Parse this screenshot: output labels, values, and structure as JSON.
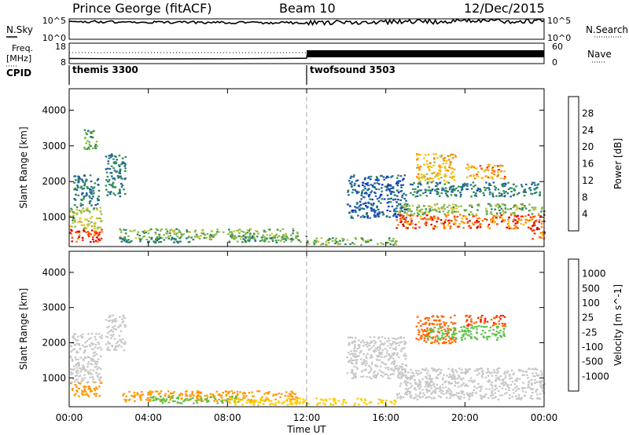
{
  "header": {
    "station": "Prince George (fitACF)",
    "beam": "Beam 10",
    "date": "12/Dec/2015"
  },
  "top_panels": {
    "nsky_label": "N.Sky",
    "nsky_ticks_left": [
      "10^5",
      "10^0"
    ],
    "nsky_ticks_right": [
      "10^5",
      "10^0"
    ],
    "nsearch_label": "N.Search",
    "freq_label": "Freq.",
    "freq_unit": "[MHz]",
    "freq_ticks_left": [
      "18",
      "8"
    ],
    "nave_ticks_right": [
      "60",
      "0"
    ],
    "nave_label": "Nave",
    "cpid_label": "CPID",
    "cpid_segments": [
      {
        "label": "themis 3300",
        "start_h": 0,
        "end_h": 12
      },
      {
        "label": "twofsound 3503",
        "start_h": 12,
        "end_h": 24
      }
    ]
  },
  "time_axis": {
    "title": "Time UT",
    "ticks": [
      "00:00",
      "04:00",
      "08:00",
      "12:00",
      "16:00",
      "20:00",
      "00:00"
    ]
  },
  "power_colorbar": {
    "title": "Power [dB]",
    "ticks": [
      "28",
      "24",
      "20",
      "16",
      "12",
      "8",
      "4"
    ],
    "colors": [
      "#d90000",
      "#ff3300",
      "#ff8000",
      "#ffbf00",
      "#d6c23a",
      "#88b84a",
      "#2e8b57",
      "#1f5f9f",
      "#1033c8",
      "#0000ff"
    ]
  },
  "velocity_colorbar": {
    "title": "Velocity [m s^-1]",
    "ticks": [
      "1000",
      "500",
      "100",
      "25",
      "-25",
      "-100",
      "-500",
      "-1000"
    ],
    "colors": [
      "#1f3fb0",
      "#2f6ab8",
      "#3a8f6a",
      "#5fc24a",
      "#c8c8c8",
      "#ffcc00",
      "#ff9900",
      "#ff6600",
      "#ff2200",
      "#d90000"
    ]
  },
  "chart_data": [
    {
      "type": "heatmap",
      "title": "Power",
      "xlabel": "",
      "ylabel": "Slant Range [km]",
      "xlim": [
        0,
        24
      ],
      "ylim": [
        180,
        4600
      ],
      "yticks": [
        1000,
        2000,
        3000,
        4000
      ],
      "zlabel": "Power [dB]",
      "zlim": [
        0,
        32
      ],
      "regions": [
        {
          "t0": 0.0,
          "t1": 1.6,
          "r0": 300,
          "r1": 700,
          "value": 28
        },
        {
          "t0": 0.0,
          "t1": 1.6,
          "r0": 700,
          "r1": 1300,
          "value": 16
        },
        {
          "t0": 0.2,
          "t1": 1.5,
          "r0": 1300,
          "r1": 2200,
          "value": 10
        },
        {
          "t0": 0.7,
          "t1": 1.4,
          "r0": 2900,
          "r1": 3500,
          "value": 12
        },
        {
          "t0": 1.8,
          "t1": 2.8,
          "r0": 1600,
          "r1": 2800,
          "value": 10
        },
        {
          "t0": 2.5,
          "t1": 11.5,
          "r0": 400,
          "r1": 700,
          "value": 14
        },
        {
          "t0": 2.5,
          "t1": 6.5,
          "r0": 300,
          "r1": 450,
          "value": 10
        },
        {
          "t0": 8.0,
          "t1": 12.0,
          "r0": 300,
          "r1": 500,
          "value": 12
        },
        {
          "t0": 12.0,
          "t1": 16.5,
          "r0": 250,
          "r1": 450,
          "value": 14
        },
        {
          "t0": 14.0,
          "t1": 17.0,
          "r0": 1000,
          "r1": 2200,
          "value": 8
        },
        {
          "t0": 16.5,
          "t1": 24.0,
          "r0": 700,
          "r1": 1100,
          "value": 26
        },
        {
          "t0": 16.5,
          "t1": 24.0,
          "r0": 1100,
          "r1": 1400,
          "value": 14
        },
        {
          "t0": 17.2,
          "t1": 23.8,
          "r0": 1600,
          "r1": 2000,
          "value": 10
        },
        {
          "t0": 17.5,
          "t1": 19.5,
          "r0": 2000,
          "r1": 2800,
          "value": 20
        },
        {
          "t0": 20.0,
          "t1": 22.0,
          "r0": 2100,
          "r1": 2500,
          "value": 22
        },
        {
          "t0": 23.3,
          "t1": 24.0,
          "r0": 400,
          "r1": 700,
          "value": 26
        }
      ]
    },
    {
      "type": "heatmap",
      "title": "Velocity",
      "xlabel": "Time UT",
      "ylabel": "Slant Range [km]",
      "xlim": [
        0,
        24
      ],
      "ylim": [
        180,
        4600
      ],
      "yticks": [
        1000,
        2000,
        3000,
        4000
      ],
      "zlabel": "Velocity [m s^-1]",
      "zlim": [
        -1000,
        1000
      ],
      "regions": [
        {
          "t0": 0.0,
          "t1": 1.6,
          "r0": 500,
          "r1": 900,
          "value": -150
        },
        {
          "t0": 0.0,
          "t1": 1.6,
          "r0": 900,
          "r1": 2300,
          "value": 0
        },
        {
          "t0": 1.8,
          "t1": 2.8,
          "r0": 1800,
          "r1": 2800,
          "value": 0
        },
        {
          "t0": 2.5,
          "t1": 11.5,
          "r0": 350,
          "r1": 650,
          "value": -200
        },
        {
          "t0": 4.0,
          "t1": 8.5,
          "r0": 300,
          "r1": 500,
          "value": 40
        },
        {
          "t0": 8.0,
          "t1": 16.5,
          "r0": 250,
          "r1": 450,
          "value": -60
        },
        {
          "t0": 14.0,
          "t1": 17.0,
          "r0": 1000,
          "r1": 2200,
          "value": 0
        },
        {
          "t0": 16.5,
          "t1": 24.0,
          "r0": 400,
          "r1": 1300,
          "value": 0
        },
        {
          "t0": 17.5,
          "t1": 19.5,
          "r0": 2000,
          "r1": 2800,
          "value": -400
        },
        {
          "t0": 18.0,
          "t1": 22.0,
          "r0": 2100,
          "r1": 2500,
          "value": 80
        },
        {
          "t0": 20.0,
          "t1": 22.0,
          "r0": 2500,
          "r1": 2800,
          "value": -500
        }
      ]
    },
    {
      "type": "line",
      "title": "",
      "series": [
        {
          "name": "N.Sky",
          "x": [
            0,
            2,
            4,
            8,
            12,
            16,
            20,
            24
          ],
          "values": [
            20000,
            18000,
            15000,
            12000,
            10000,
            15000,
            25000,
            30000
          ]
        }
      ]
    },
    {
      "type": "line",
      "title": "",
      "series": [
        {
          "name": "Freq. [MHz]",
          "x": [
            0,
            4,
            8,
            12,
            12.01,
            16,
            20,
            24
          ],
          "values": [
            10.5,
            10.3,
            10.4,
            10.6,
            12.0,
            12.0,
            12.0,
            12.0
          ]
        }
      ]
    }
  ]
}
